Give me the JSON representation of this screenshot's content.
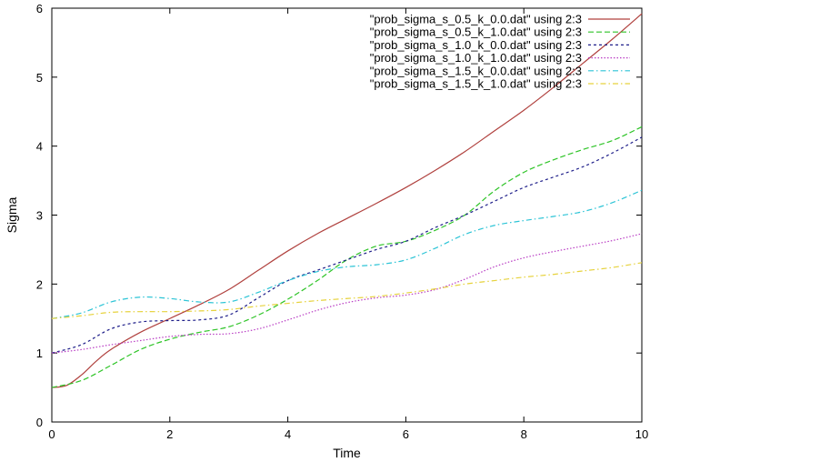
{
  "chart_data": {
    "type": "line",
    "xlabel": "Time",
    "ylabel": "Sigma",
    "xlim": [
      0,
      10
    ],
    "ylim": [
      0,
      6
    ],
    "xticks": [
      "0",
      "2",
      "4",
      "6",
      "8",
      "10"
    ],
    "yticks": [
      "0",
      "1",
      "2",
      "3",
      "4",
      "5",
      "6"
    ],
    "grid": false,
    "legend_position": "top-right",
    "series": [
      {
        "name": "\"prob_sigma_s_0.5_k_0.0.dat\" using 2:3",
        "color": "#b0413e",
        "dash": "solid",
        "x": [
          0,
          0.25,
          0.5,
          0.75,
          1,
          1.5,
          2,
          2.5,
          3,
          3.5,
          4,
          4.5,
          5,
          5.5,
          6,
          6.5,
          7,
          7.5,
          8,
          8.5,
          9,
          9.5,
          10
        ],
        "y": [
          0.5,
          0.53,
          0.68,
          0.88,
          1.05,
          1.3,
          1.5,
          1.7,
          1.92,
          2.2,
          2.48,
          2.73,
          2.95,
          3.17,
          3.4,
          3.65,
          3.92,
          4.22,
          4.52,
          4.85,
          5.2,
          5.55,
          5.92
        ]
      },
      {
        "name": "\"prob_sigma_s_0.5_k_1.0.dat\" using 2:3",
        "color": "#2ec427",
        "dash": "long-dash",
        "x": [
          0,
          0.5,
          1,
          1.5,
          2,
          2.5,
          3,
          3.5,
          4,
          4.5,
          5,
          5.5,
          6,
          6.5,
          7,
          7.5,
          8,
          8.5,
          9,
          9.5,
          10
        ],
        "y": [
          0.5,
          0.6,
          0.82,
          1.05,
          1.2,
          1.3,
          1.38,
          1.55,
          1.78,
          2.05,
          2.35,
          2.55,
          2.62,
          2.78,
          3.0,
          3.35,
          3.62,
          3.8,
          3.95,
          4.08,
          4.28
        ]
      },
      {
        "name": "\"prob_sigma_s_1.0_k_0.0.dat\" using 2:3",
        "color": "#1f1f8a",
        "dash": "short-dash",
        "x": [
          0,
          0.5,
          1,
          1.5,
          2,
          2.5,
          3,
          3.5,
          4,
          4.5,
          5,
          5.5,
          6,
          6.5,
          7,
          7.5,
          8,
          8.5,
          9,
          9.5,
          10
        ],
        "y": [
          1.0,
          1.12,
          1.35,
          1.45,
          1.47,
          1.48,
          1.55,
          1.8,
          2.05,
          2.2,
          2.35,
          2.5,
          2.62,
          2.82,
          3.0,
          3.2,
          3.4,
          3.55,
          3.7,
          3.9,
          4.13
        ]
      },
      {
        "name": "\"prob_sigma_s_1.0_k_1.0.dat\" using 2:3",
        "color": "#b93cc4",
        "dash": "dotted",
        "x": [
          0,
          0.5,
          1,
          1.5,
          2,
          2.5,
          3,
          3.5,
          4,
          4.5,
          5,
          5.5,
          6,
          6.5,
          7,
          7.5,
          8,
          8.5,
          9,
          9.5,
          10
        ],
        "y": [
          1.0,
          1.05,
          1.12,
          1.18,
          1.24,
          1.27,
          1.28,
          1.35,
          1.48,
          1.62,
          1.73,
          1.8,
          1.84,
          1.92,
          2.07,
          2.25,
          2.38,
          2.47,
          2.55,
          2.63,
          2.73
        ]
      },
      {
        "name": "\"prob_sigma_s_1.5_k_0.0.dat\" using 2:3",
        "color": "#2cc4d6",
        "dash": "dash-dot",
        "x": [
          0,
          0.5,
          1,
          1.5,
          2,
          2.5,
          3,
          3.5,
          4,
          4.5,
          5,
          5.5,
          6,
          6.5,
          7,
          7.5,
          8,
          8.5,
          9,
          9.5,
          10
        ],
        "y": [
          1.5,
          1.58,
          1.74,
          1.81,
          1.79,
          1.74,
          1.74,
          1.88,
          2.05,
          2.18,
          2.25,
          2.28,
          2.35,
          2.52,
          2.72,
          2.85,
          2.92,
          2.98,
          3.05,
          3.18,
          3.36
        ]
      },
      {
        "name": "\"prob_sigma_s_1.5_k_1.0.dat\" using 2:3",
        "color": "#e6d23c",
        "dash": "dash-dot",
        "x": [
          0,
          0.5,
          1,
          1.5,
          2,
          2.5,
          3,
          3.5,
          4,
          4.5,
          5,
          5.5,
          6,
          6.5,
          7,
          7.5,
          8,
          8.5,
          9,
          9.5,
          10
        ],
        "y": [
          1.5,
          1.54,
          1.59,
          1.6,
          1.6,
          1.61,
          1.63,
          1.68,
          1.72,
          1.76,
          1.79,
          1.82,
          1.87,
          1.93,
          2.0,
          2.05,
          2.1,
          2.14,
          2.19,
          2.24,
          2.31
        ]
      }
    ]
  }
}
